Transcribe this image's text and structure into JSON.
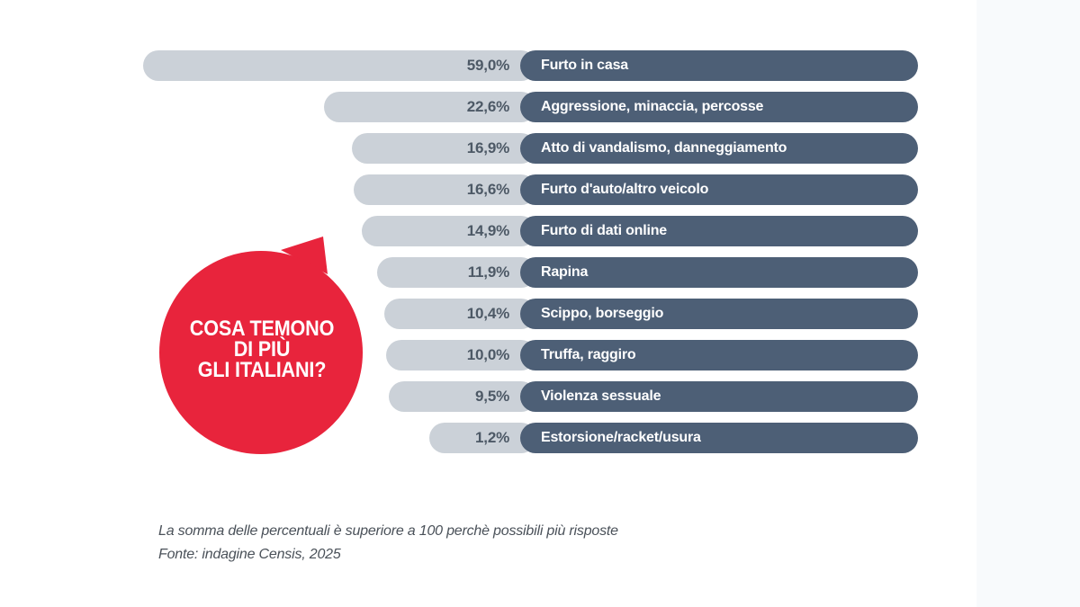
{
  "bubble": {
    "lines": [
      "COSA TEMONO",
      "DI PIÙ",
      "GLI ITALIANI?"
    ],
    "color": "#e8243c"
  },
  "chart_data": {
    "type": "bar",
    "orientation": "horizontal",
    "title": "COSA TEMONO DI PIÙ GLI ITALIANI?",
    "unit": "%",
    "categories": [
      "Furto in casa",
      "Aggressione, minaccia, percosse",
      "Atto di vandalismo, danneggiamento",
      "Furto d'auto/altro veicolo",
      "Furto di dati online",
      "Rapina",
      "Scippo, borseggio",
      "Truffa, raggiro",
      "Violenza sessuale",
      "Estorsione/racket/usura"
    ],
    "values": [
      59.0,
      22.6,
      16.9,
      16.6,
      14.9,
      11.9,
      10.4,
      10.0,
      9.5,
      1.2
    ],
    "value_labels": [
      "59,0%",
      "22,6%",
      "16,9%",
      "16,6%",
      "14,9%",
      "11,9%",
      "10,4%",
      "10,0%",
      "9,5%",
      "1,2%"
    ],
    "legend": "none",
    "grid": false,
    "colors": {
      "value_bar": "#cbd1d8",
      "label_pill": "#4d5f76",
      "value_text": "#4d5966",
      "label_text": "#ffffff"
    }
  },
  "footer": {
    "note": "La somma delle percentuali è superiore a 100 perchè possibili più risposte",
    "source": "Fonte: indagine Censis, 2025"
  }
}
